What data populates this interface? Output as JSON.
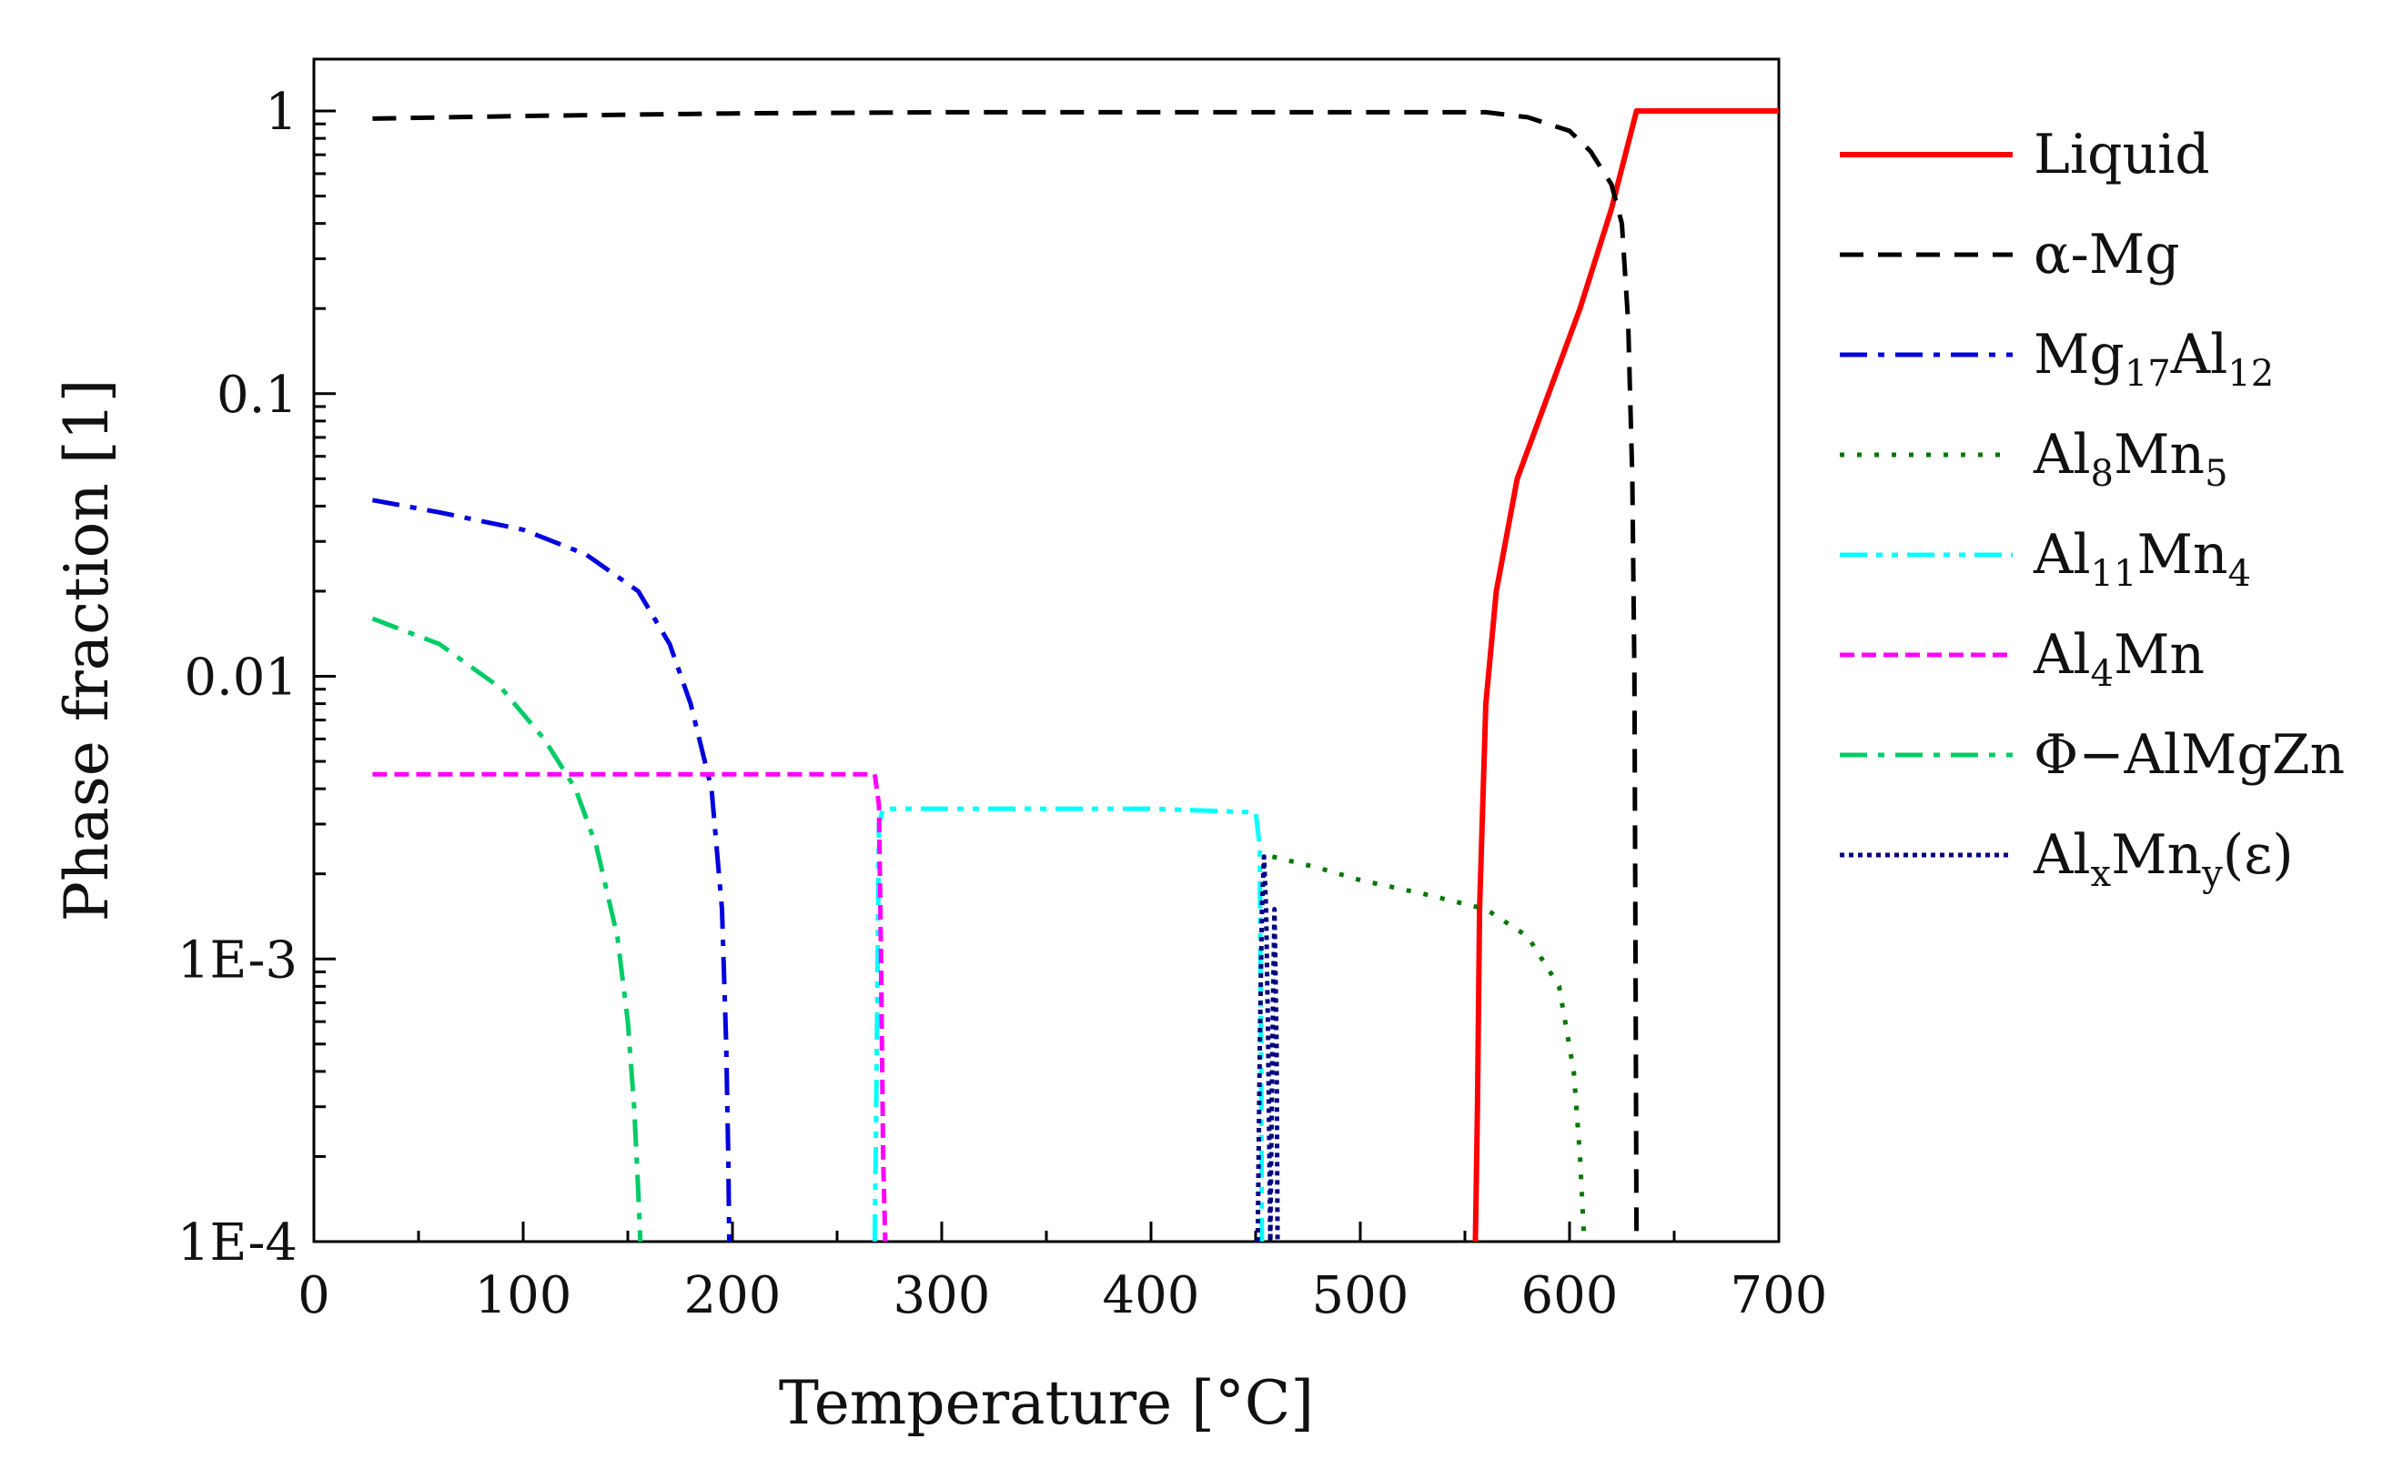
{
  "chart_data": {
    "type": "line",
    "title": "",
    "xlabel": "Temperature [°C]",
    "ylabel": "Phase fraction [1]",
    "xlim": [
      0,
      700
    ],
    "ylim": [
      0.0001,
      1.5
    ],
    "yscale": "log",
    "xticks": [
      0,
      100,
      200,
      300,
      400,
      500,
      600,
      700
    ],
    "xtick_labels": [
      "0",
      "100",
      "200",
      "300",
      "400",
      "500",
      "600",
      "700"
    ],
    "yticks": [
      0.0001,
      0.001,
      0.01,
      0.1,
      1
    ],
    "ytick_labels": [
      "1E-4",
      "1E-3",
      "0.01",
      "0.1",
      "1"
    ],
    "grid": false,
    "legend_position": "right-outside",
    "series": [
      {
        "name": "Liquid",
        "label_parts": [
          {
            "t": "Liquid"
          }
        ],
        "color": "#ff0000",
        "dash": "solid",
        "points": [
          [
            555,
            0.0001
          ],
          [
            556,
            0.0003
          ],
          [
            557,
            0.0015
          ],
          [
            560,
            0.008
          ],
          [
            565,
            0.02
          ],
          [
            575,
            0.05
          ],
          [
            590,
            0.1
          ],
          [
            605,
            0.2
          ],
          [
            620,
            0.45
          ],
          [
            632,
            1
          ],
          [
            700,
            1
          ]
        ]
      },
      {
        "name": "α-Mg",
        "label_parts": [
          {
            "t": "α-Mg"
          }
        ],
        "color": "#000000",
        "dash": "dashed",
        "points": [
          [
            28,
            0.94
          ],
          [
            100,
            0.96
          ],
          [
            200,
            0.98
          ],
          [
            300,
            0.99
          ],
          [
            400,
            0.99
          ],
          [
            500,
            0.99
          ],
          [
            560,
            0.99
          ],
          [
            580,
            0.95
          ],
          [
            600,
            0.85
          ],
          [
            610,
            0.72
          ],
          [
            620,
            0.55
          ],
          [
            625,
            0.4
          ],
          [
            628,
            0.18
          ],
          [
            630,
            0.05
          ],
          [
            631,
            0.01
          ],
          [
            631.5,
            0.001
          ],
          [
            632,
            0.0001
          ]
        ]
      },
      {
        "name": "Mg17Al12",
        "label_parts": [
          {
            "t": "Mg"
          },
          {
            "t": "17",
            "sub": true
          },
          {
            "t": "Al"
          },
          {
            "t": "12",
            "sub": true
          }
        ],
        "color": "#0000dd",
        "dash": "dashdot",
        "points": [
          [
            28,
            0.042
          ],
          [
            60,
            0.038
          ],
          [
            100,
            0.033
          ],
          [
            130,
            0.027
          ],
          [
            155,
            0.02
          ],
          [
            170,
            0.013
          ],
          [
            180,
            0.008
          ],
          [
            190,
            0.004
          ],
          [
            195,
            0.0015
          ],
          [
            197,
            0.0005
          ],
          [
            198,
            0.0002
          ],
          [
            198.5,
            0.0001
          ]
        ]
      },
      {
        "name": "Al8Mn5",
        "label_parts": [
          {
            "t": "Al"
          },
          {
            "t": "8",
            "sub": true
          },
          {
            "t": "Mn"
          },
          {
            "t": "5",
            "sub": true
          }
        ],
        "color": "#007700",
        "dash": "dotted",
        "points": [
          [
            458,
            0.0023
          ],
          [
            480,
            0.0021
          ],
          [
            500,
            0.0019
          ],
          [
            530,
            0.0017
          ],
          [
            560,
            0.0015
          ],
          [
            580,
            0.0012
          ],
          [
            595,
            0.0008
          ],
          [
            602,
            0.0004
          ],
          [
            605,
            0.0002
          ],
          [
            607,
            0.0001
          ]
        ]
      },
      {
        "name": "Al11Mn4",
        "label_parts": [
          {
            "t": "Al"
          },
          {
            "t": "11",
            "sub": true
          },
          {
            "t": "Mn"
          },
          {
            "t": "4",
            "sub": true
          }
        ],
        "color": "#00ffff",
        "dash": "dashdotdot",
        "points": [
          [
            268,
            0.0001
          ],
          [
            269,
            0.0005
          ],
          [
            270,
            0.003
          ],
          [
            272,
            0.0034
          ],
          [
            300,
            0.0034
          ],
          [
            350,
            0.0034
          ],
          [
            400,
            0.0034
          ],
          [
            450,
            0.0033
          ],
          [
            452,
            0.0025
          ],
          [
            453,
            0.0001
          ]
        ]
      },
      {
        "name": "Al4Mn",
        "label_parts": [
          {
            "t": "Al"
          },
          {
            "t": "4",
            "sub": true
          },
          {
            "t": "Mn"
          }
        ],
        "color": "#ff00ff",
        "dash": "shortdash",
        "points": [
          [
            28,
            0.0045
          ],
          [
            100,
            0.0045
          ],
          [
            200,
            0.0045
          ],
          [
            268,
            0.0045
          ],
          [
            270,
            0.0035
          ],
          [
            271,
            0.001
          ],
          [
            272,
            0.0002
          ],
          [
            273,
            0.0001
          ]
        ]
      },
      {
        "name": "Φ−AlMgZn",
        "label_parts": [
          {
            "t": "Φ−AlMgZn"
          }
        ],
        "color": "#00cc66",
        "dash": "dashdot",
        "points": [
          [
            28,
            0.016
          ],
          [
            60,
            0.013
          ],
          [
            90,
            0.009
          ],
          [
            110,
            0.006
          ],
          [
            125,
            0.004
          ],
          [
            135,
            0.0025
          ],
          [
            145,
            0.0012
          ],
          [
            150,
            0.0006
          ],
          [
            153,
            0.0003
          ],
          [
            155,
            0.00015
          ],
          [
            156,
            0.0001
          ]
        ]
      },
      {
        "name": "AlxMny(ε)",
        "label_parts": [
          {
            "t": "Al"
          },
          {
            "t": "x",
            "sub": true
          },
          {
            "t": "Mn"
          },
          {
            "t": "y",
            "sub": true
          },
          {
            "t": "(ε)"
          }
        ],
        "color": "#000080",
        "dash": "dense",
        "points": [
          [
            451,
            0.0001
          ],
          [
            452,
            0.0005
          ],
          [
            453,
            0.0015
          ],
          [
            454,
            0.0023
          ],
          [
            455,
            0.0015
          ],
          [
            456,
            0.0005
          ],
          [
            457,
            0.0001
          ],
          [
            458,
            0.0005
          ],
          [
            459,
            0.0015
          ],
          [
            460,
            0.0005
          ],
          [
            460.5,
            0.0001
          ]
        ]
      }
    ]
  }
}
